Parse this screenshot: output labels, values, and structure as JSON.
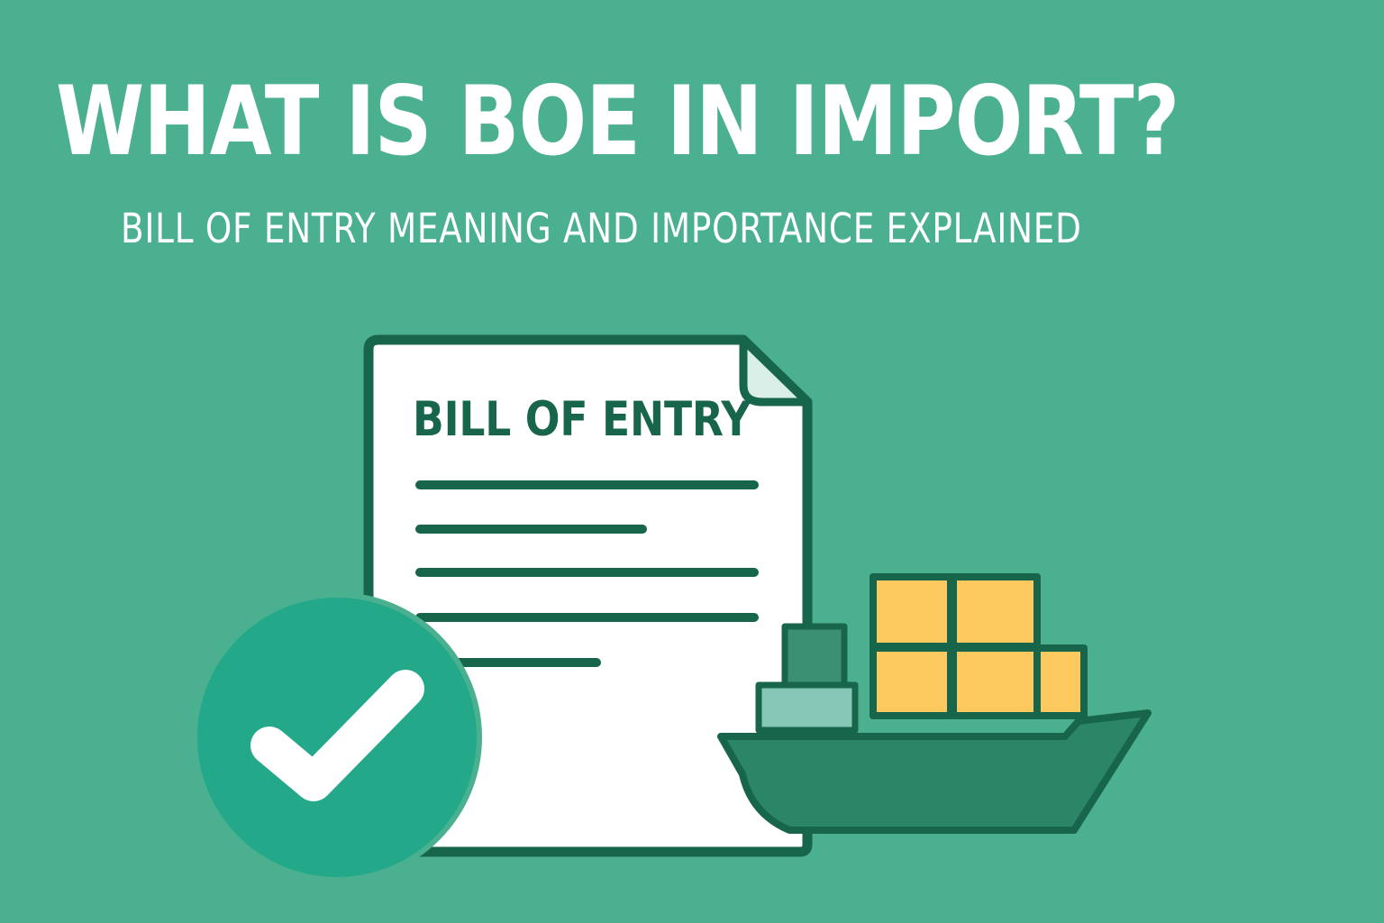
{
  "headline": "WHAT IS BOE IN IMPORT?",
  "subheadline": "BILL OF ENTRY MEANING AND IMPORTANCE EXPLAINED",
  "document": {
    "heading": "BILL OF ENTRY",
    "text_lines": 5
  },
  "icons": [
    "document-icon",
    "checkmark-icon",
    "cargo-ship-icon",
    "shipping-container-icon"
  ],
  "colors": {
    "background": "#4bb08f",
    "accent_dark": "#17654a",
    "check_badge": "#23a98a",
    "container": "#fbc95d",
    "ship_hull": "#2b8567",
    "cabin": "#87c7b5"
  }
}
